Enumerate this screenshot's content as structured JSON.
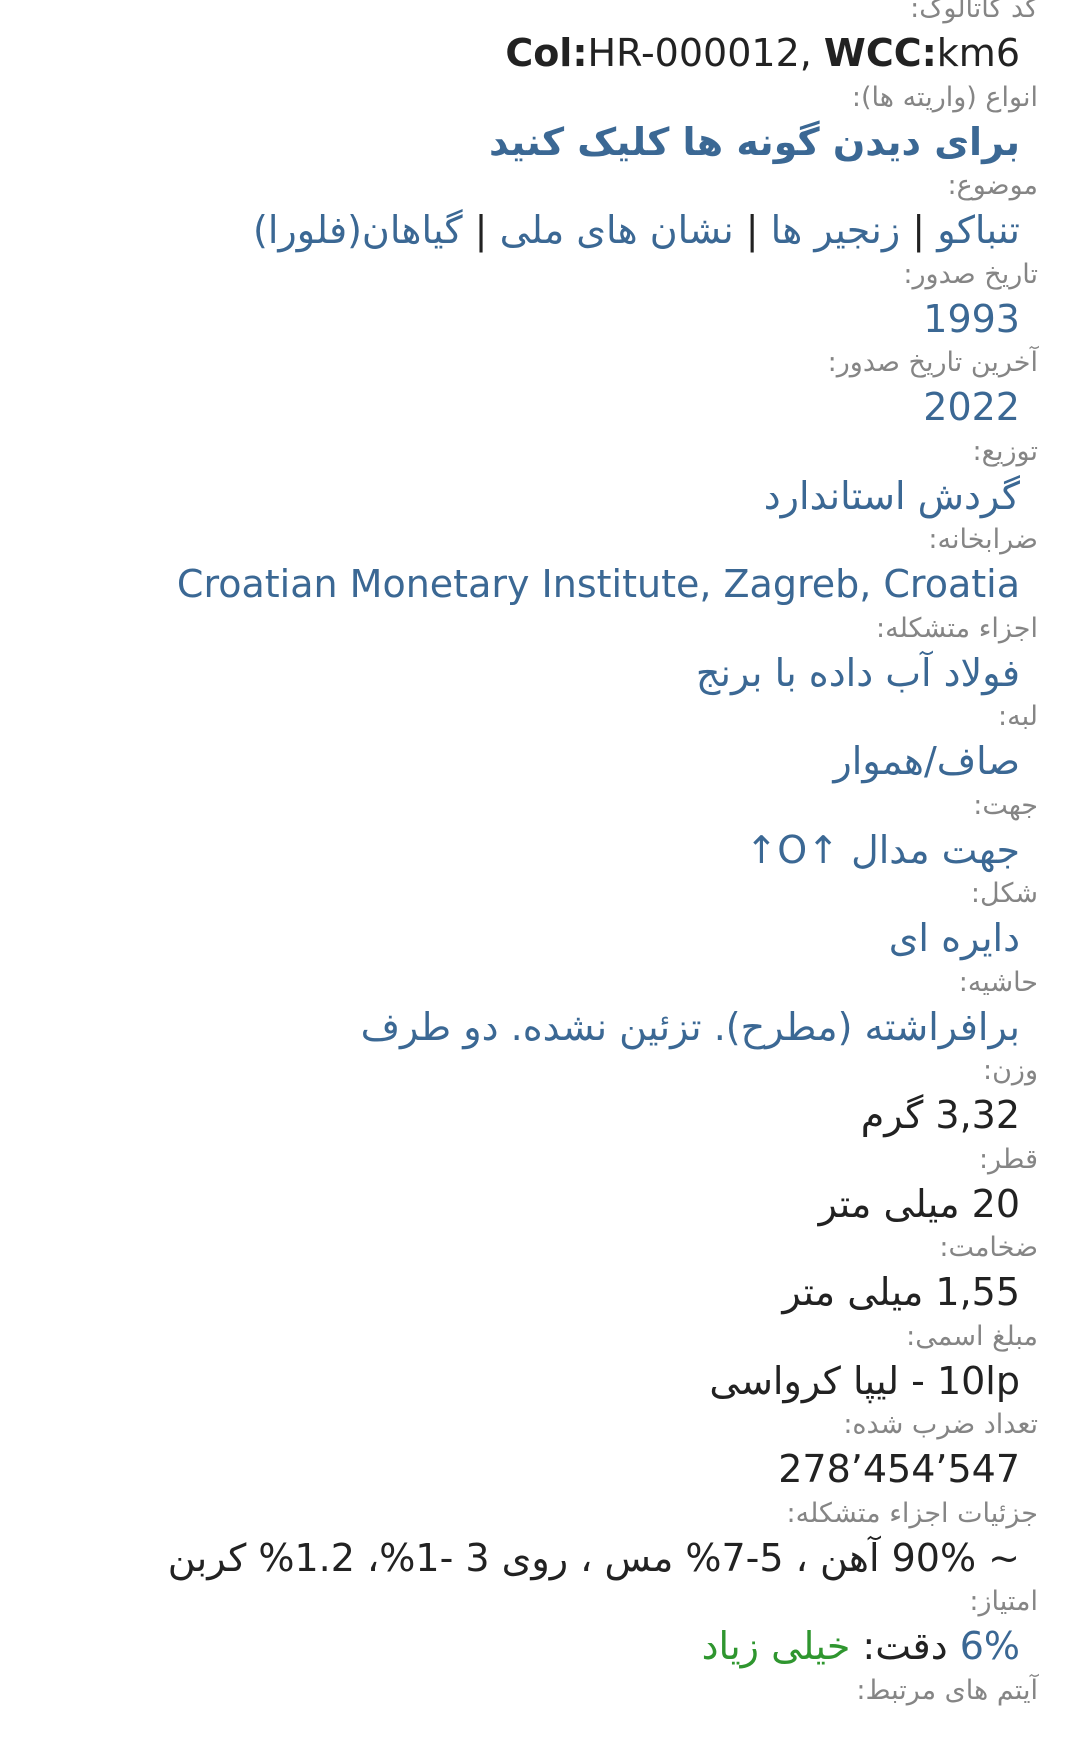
{
  "colors": {
    "label": "#858585",
    "link": "#3b6894",
    "text": "#222222",
    "rating": "#2f962f"
  },
  "catalog": {
    "label": "کد کاتالوگ:",
    "col_key": "Col:",
    "col_val": "HR-000012, ",
    "wcc_key": "WCC:",
    "wcc_val": "km6"
  },
  "varieties": {
    "label": "انواع (واریته ها):",
    "link": "برای دیدن گونه ها کلیک کنید"
  },
  "subject": {
    "label": "موضوع:",
    "items": [
      "تنباکو",
      "زنجیر ها",
      "نشان های ملی",
      "گیاهان(فلورا)"
    ],
    "separator": " | "
  },
  "issue_date": {
    "label": "تاریخ صدور:",
    "value": "1993"
  },
  "last_issue_date": {
    "label": "آخرین تاریخ صدور:",
    "value": "2022"
  },
  "distribution": {
    "label": "توزیع:",
    "value": "گردش استاندارد"
  },
  "mint": {
    "label": "ضرابخانه:",
    "value": "Croatian Monetary Institute, Zagreb, Croatia"
  },
  "composition": {
    "label": "اجزاء متشکله:",
    "value": "فولاد آب داده با برنج"
  },
  "edge": {
    "label": "لبه:",
    "value": "صاف/هموار"
  },
  "orientation": {
    "label": "جهت:",
    "value": "جهت مدال ↑O↑"
  },
  "shape": {
    "label": "شکل:",
    "value": "دایره ای"
  },
  "border": {
    "label": "حاشیه:",
    "value": "برافراشته (مطرح). تزئین نشده. دو طرف"
  },
  "weight": {
    "label": "وزن:",
    "value": "3,32 گرم"
  },
  "diameter": {
    "label": "قطر:",
    "value": "20 میلی متر"
  },
  "thickness": {
    "label": "ضخامت:",
    "value": "1,55 میلی متر"
  },
  "face_value": {
    "label": "مبلغ اسمی:",
    "value": "10lp - لیپا کرواسی"
  },
  "mintage": {
    "label": "تعداد ضرب شده:",
    "value": "547’454’278"
  },
  "composition_details": {
    "label": "جزئیات اجزاء متشکله:",
    "value": "~ 90% آهن ، 5-7% مس ، روی 3 -1%، 1.2% کربن"
  },
  "score": {
    "label": "امتیاز:",
    "percent": "6%",
    "precision_label": " دقت: ",
    "precision_value": "خیلی زیاد"
  },
  "related": {
    "label": "آیتم های مرتبط:"
  }
}
